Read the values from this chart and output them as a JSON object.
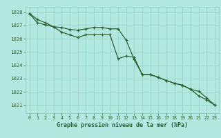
{
  "title": "Graphe pression niveau de la mer (hPa)",
  "background_color": "#b2e8e0",
  "grid_color": "#8dcdc6",
  "line_color": "#2d5e2d",
  "ylim": [
    1020.4,
    1028.4
  ],
  "yticks": [
    1021,
    1022,
    1023,
    1024,
    1025,
    1026,
    1027,
    1028
  ],
  "xlim": [
    -0.5,
    23.5
  ],
  "xticks": [
    0,
    1,
    2,
    3,
    4,
    5,
    6,
    7,
    8,
    9,
    10,
    11,
    12,
    13,
    14,
    15,
    16,
    17,
    18,
    19,
    20,
    21,
    22,
    23
  ],
  "series1": [
    1027.9,
    1027.45,
    1027.2,
    1026.9,
    1026.85,
    1026.7,
    1026.65,
    1026.75,
    1026.85,
    1026.85,
    1026.75,
    1026.75,
    1025.9,
    1024.45,
    1023.3,
    1023.3,
    1023.1,
    1022.85,
    1022.65,
    1022.5,
    1022.2,
    1021.7,
    1021.4,
    1021.0
  ],
  "series2": [
    1027.9,
    1027.2,
    1027.05,
    1026.9,
    1026.5,
    1026.3,
    1026.1,
    1026.3,
    1026.3,
    1026.3,
    1026.3,
    1024.5,
    1024.7,
    1024.6,
    1023.3,
    1023.3,
    1023.1,
    1022.85,
    1022.65,
    1022.5,
    1022.2,
    1022.05,
    1021.55,
    1021.0
  ]
}
